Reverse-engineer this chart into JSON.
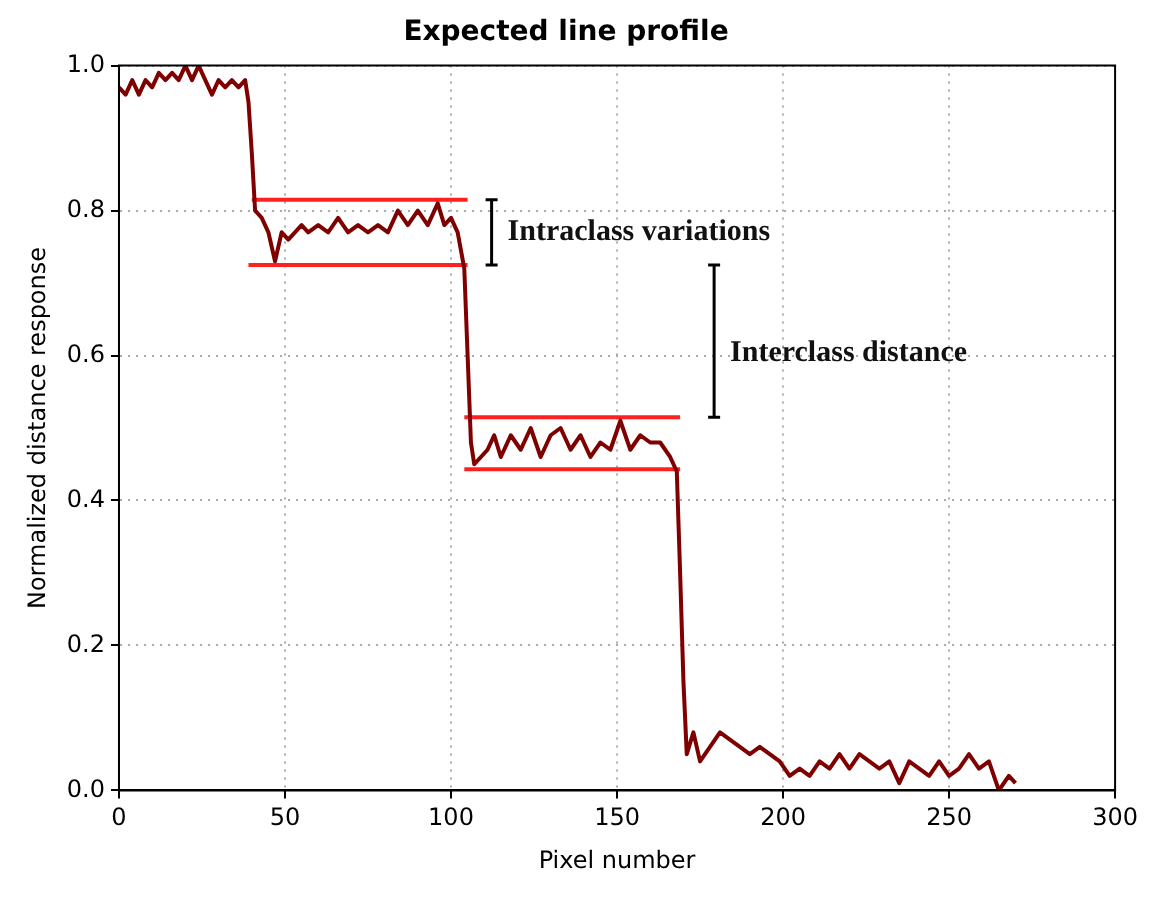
{
  "chart_data": {
    "type": "line",
    "title": "Expected line profile",
    "xlabel": "Pixel number",
    "ylabel": "Normalized distance response",
    "xlim": [
      0,
      300
    ],
    "xticks": [
      0,
      50,
      100,
      150,
      200,
      250,
      300
    ],
    "ylim": [
      0,
      1.0
    ],
    "yticks": [
      {
        "value": 0,
        "label": "0.0"
      },
      0.2,
      0.4,
      0.6,
      0.8,
      {
        "value": 1.0,
        "label": "1.0"
      }
    ],
    "grid": true,
    "legend": false,
    "marker": "none",
    "line_style": "solid",
    "series": [
      {
        "color": "#7f0000",
        "x": [
          0,
          2,
          4,
          6,
          8,
          10,
          12,
          14,
          16,
          18,
          20,
          22,
          24,
          26,
          28,
          30,
          32,
          34,
          36,
          38,
          39,
          40,
          41,
          43,
          45,
          47,
          49,
          51,
          53,
          55,
          57,
          60,
          63,
          66,
          69,
          72,
          75,
          78,
          81,
          84,
          87,
          90,
          93,
          96,
          98,
          100,
          102,
          104,
          105,
          106,
          107,
          109,
          111,
          113,
          115,
          118,
          121,
          124,
          127,
          130,
          133,
          136,
          139,
          142,
          145,
          148,
          151,
          154,
          157,
          160,
          163,
          166,
          168,
          169,
          170,
          171,
          173,
          175,
          178,
          181,
          184,
          187,
          190,
          193,
          196,
          199,
          202,
          205,
          208,
          211,
          214,
          217,
          220,
          223,
          226,
          229,
          232,
          235,
          238,
          241,
          244,
          247,
          250,
          253,
          256,
          259,
          262,
          265,
          268,
          270
        ],
        "values": [
          0.97,
          0.96,
          0.98,
          0.96,
          0.98,
          0.97,
          0.99,
          0.98,
          0.99,
          0.98,
          1.0,
          0.98,
          1.0,
          0.98,
          0.96,
          0.98,
          0.97,
          0.98,
          0.97,
          0.98,
          0.95,
          0.88,
          0.8,
          0.79,
          0.77,
          0.73,
          0.77,
          0.76,
          0.77,
          0.78,
          0.77,
          0.78,
          0.77,
          0.79,
          0.77,
          0.78,
          0.77,
          0.78,
          0.77,
          0.8,
          0.78,
          0.8,
          0.78,
          0.81,
          0.78,
          0.79,
          0.77,
          0.72,
          0.6,
          0.48,
          0.45,
          0.46,
          0.47,
          0.49,
          0.46,
          0.49,
          0.47,
          0.5,
          0.46,
          0.49,
          0.5,
          0.47,
          0.49,
          0.46,
          0.48,
          0.47,
          0.51,
          0.47,
          0.49,
          0.48,
          0.48,
          0.46,
          0.44,
          0.3,
          0.15,
          0.05,
          0.08,
          0.04,
          0.06,
          0.08,
          0.07,
          0.06,
          0.05,
          0.06,
          0.05,
          0.04,
          0.02,
          0.03,
          0.02,
          0.04,
          0.03,
          0.05,
          0.03,
          0.05,
          0.04,
          0.03,
          0.04,
          0.01,
          0.04,
          0.03,
          0.02,
          0.04,
          0.02,
          0.03,
          0.05,
          0.03,
          0.04,
          0.0,
          0.02,
          0.01
        ]
      },
      {
        "color": "#ff2020",
        "x": [
          40,
          105
        ],
        "values": [
          0.815,
          0.815
        ]
      },
      {
        "color": "#ff2020",
        "x": [
          39,
          105
        ],
        "values": [
          0.725,
          0.725
        ]
      },
      {
        "color": "#ff2020",
        "x": [
          104,
          169
        ],
        "values": [
          0.515,
          0.515
        ]
      },
      {
        "color": "#ff2020",
        "x": [
          104,
          169
        ],
        "values": [
          0.443,
          0.443
        ]
      }
    ],
    "annotations": [
      "Intraclass variations",
      "Interclass distance"
    ]
  }
}
